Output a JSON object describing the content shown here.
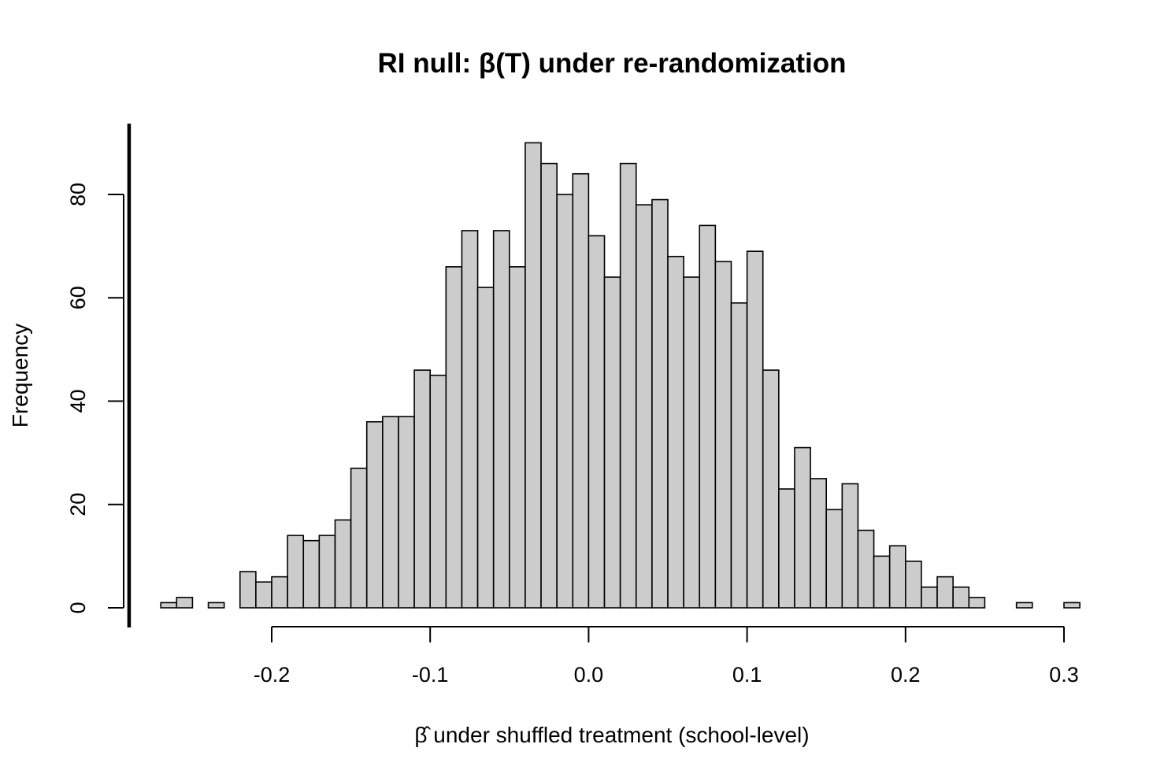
{
  "chart_data": {
    "type": "bar",
    "title": "RI null: β(T) under re-randomization",
    "xlabel": "β̂ under shuffled treatment (school-level)",
    "ylabel": "Frequency",
    "bin_width": 0.01,
    "bin_start": -0.27,
    "counts": [
      1,
      2,
      0,
      1,
      0,
      7,
      5,
      6,
      14,
      13,
      14,
      17,
      27,
      36,
      37,
      37,
      46,
      45,
      66,
      73,
      62,
      73,
      66,
      90,
      86,
      80,
      84,
      72,
      64,
      86,
      78,
      79,
      68,
      64,
      74,
      67,
      59,
      69,
      46,
      23,
      31,
      25,
      19,
      24,
      15,
      10,
      12,
      9,
      4,
      6,
      4,
      2,
      0,
      0,
      1,
      0,
      0,
      1
    ],
    "xlim": [
      -0.27,
      0.3
    ],
    "ylim": [
      0,
      90
    ],
    "x_ticks": [
      -0.2,
      -0.1,
      0.0,
      0.1,
      0.2,
      0.3
    ],
    "x_tick_labels": [
      "-0.2",
      "-0.1",
      "0.0",
      "0.1",
      "0.2",
      "0.3"
    ],
    "y_ticks": [
      0,
      20,
      40,
      60,
      80
    ],
    "y_tick_labels": [
      "0",
      "20",
      "40",
      "60",
      "80"
    ],
    "reference_line": {
      "x": -0.29
    },
    "colors": {
      "bar_fill": "#cccccc",
      "bar_stroke": "#000000"
    }
  }
}
